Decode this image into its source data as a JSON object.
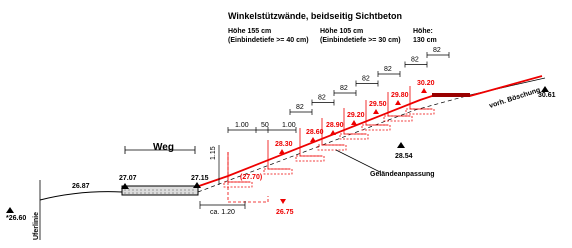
{
  "title": "Winkelstützwände, beidseitig Sichtbeton",
  "wall_types": [
    {
      "height": "Höhe 155 cm",
      "embed": "(Einbindetiefe >= 40 cm)"
    },
    {
      "height": "Höhe 105 cm",
      "embed": "(Einbindetiefe >= 30 cm)"
    },
    {
      "height": "Höhe:",
      "embed": "130 cm"
    }
  ],
  "dimensions": {
    "steps": [
      "82",
      "82",
      "82",
      "82",
      "82",
      "82",
      "82"
    ],
    "base": [
      "1.00",
      "50",
      "1.00"
    ],
    "height": "1.15",
    "width": "ca. 1.20"
  },
  "elevations_red": [
    "30.20",
    "29.80",
    "29.50",
    "29.20",
    "28.90",
    "28.60",
    "28.30",
    "(27.70)",
    "26.75"
  ],
  "elevations_black": [
    "30.61",
    "28.54",
    "27.15",
    "27.07",
    "26.87",
    "*26.60"
  ],
  "labels": {
    "path": "Weg",
    "shore": "Uferlinie",
    "slope": "vorh. Böschung",
    "adjust": "Geländeanpassung"
  }
}
